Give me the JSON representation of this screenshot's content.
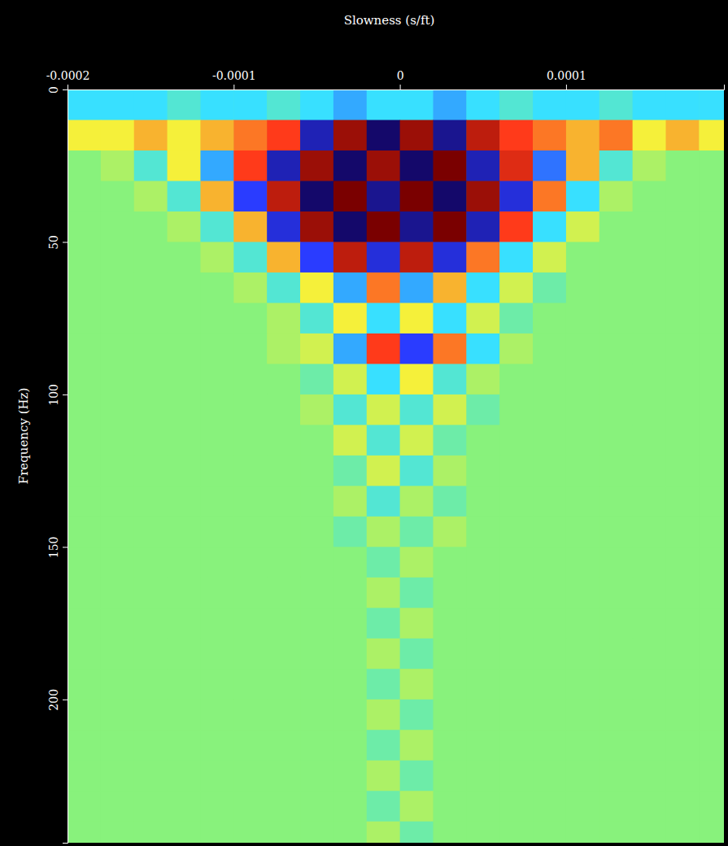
{
  "chart_data": {
    "type": "heatmap",
    "xlabel": "Slowness (s/ft)",
    "ylabel": "Frequency (Hz)",
    "xlim": [
      -0.0002,
      0.000195
    ],
    "ylim": [
      0,
      247
    ],
    "xticks": [
      -0.0002,
      -0.0001,
      0,
      0.0001
    ],
    "yticks": [
      0,
      50,
      100,
      150,
      200
    ],
    "zlim": [
      -1,
      1
    ],
    "x": [
      -0.00019,
      -0.00017,
      -0.00015,
      -0.00013,
      -0.00011,
      -9e-05,
      -7e-05,
      -5e-05,
      -3e-05,
      -1e-05,
      1e-05,
      3e-05,
      5e-05,
      7e-05,
      9e-05,
      0.00011,
      0.00013,
      0.00015,
      0.00017,
      0.00019
    ],
    "y": [
      5,
      15,
      25,
      35,
      45,
      55,
      65,
      75,
      85,
      95,
      105,
      115,
      125,
      135,
      145,
      155,
      165,
      175,
      185,
      195,
      205,
      215,
      225,
      235,
      245
    ],
    "z": [
      [
        -0.3,
        -0.3,
        -0.3,
        -0.2,
        -0.3,
        -0.3,
        -0.2,
        -0.3,
        -0.4,
        -0.3,
        -0.3,
        -0.4,
        -0.3,
        -0.2,
        -0.3,
        -0.3,
        -0.2,
        -0.3,
        -0.3,
        -0.3
      ],
      [
        0.3,
        0.3,
        0.4,
        0.3,
        0.4,
        0.5,
        0.6,
        -0.8,
        0.9,
        -1.0,
        0.9,
        -0.9,
        0.8,
        0.6,
        0.5,
        0.4,
        0.5,
        0.3,
        0.4,
        0.3
      ],
      [
        0,
        0.1,
        -0.2,
        0.3,
        -0.4,
        0.6,
        -0.8,
        0.9,
        -1.0,
        0.9,
        -1.0,
        1.0,
        -0.8,
        0.7,
        -0.5,
        0.4,
        -0.2,
        0.1,
        0,
        0
      ],
      [
        0,
        0,
        0.1,
        -0.2,
        0.4,
        -0.6,
        0.8,
        -1.0,
        1.0,
        -0.9,
        1.0,
        -1.0,
        0.9,
        -0.7,
        0.5,
        -0.3,
        0.1,
        0,
        0,
        0
      ],
      [
        0,
        0,
        0,
        0.1,
        -0.2,
        0.4,
        -0.7,
        0.9,
        -1.0,
        1.0,
        -0.9,
        1.0,
        -0.8,
        0.6,
        -0.3,
        0.2,
        0,
        0,
        0,
        0
      ],
      [
        0,
        0,
        0,
        0,
        0.1,
        -0.2,
        0.4,
        -0.6,
        0.8,
        -0.7,
        0.8,
        -0.7,
        0.5,
        -0.3,
        0.2,
        0,
        0,
        0,
        0,
        0
      ],
      [
        0,
        0,
        0,
        0,
        0,
        0.1,
        -0.2,
        0.3,
        -0.4,
        0.5,
        -0.4,
        0.4,
        -0.3,
        0.2,
        -0.1,
        0,
        0,
        0,
        0,
        0
      ],
      [
        0,
        0,
        0,
        0,
        0,
        0,
        0.1,
        -0.2,
        0.3,
        -0.3,
        0.3,
        -0.3,
        0.2,
        -0.1,
        0,
        0,
        0,
        0,
        0,
        0
      ],
      [
        0,
        0,
        0,
        0,
        0,
        0,
        0.1,
        0.2,
        -0.4,
        0.6,
        -0.6,
        0.5,
        -0.3,
        0.1,
        0,
        0,
        0,
        0,
        0,
        0
      ],
      [
        0,
        0,
        0,
        0,
        0,
        0,
        0,
        -0.1,
        0.2,
        -0.3,
        0.3,
        -0.2,
        0.1,
        0,
        0,
        0,
        0,
        0,
        0,
        0
      ],
      [
        0,
        0,
        0,
        0,
        0,
        0,
        0,
        0.1,
        -0.2,
        0.2,
        -0.2,
        0.2,
        -0.1,
        0,
        0,
        0,
        0,
        0,
        0,
        0
      ],
      [
        0,
        0,
        0,
        0,
        0,
        0,
        0,
        0,
        0.2,
        -0.2,
        0.2,
        -0.1,
        0,
        0,
        0,
        0,
        0,
        0,
        0,
        0
      ],
      [
        0,
        0,
        0,
        0,
        0,
        0,
        0,
        0,
        -0.1,
        0.2,
        -0.2,
        0.1,
        0,
        0,
        0,
        0,
        0,
        0,
        0,
        0
      ],
      [
        0,
        0,
        0,
        0,
        0,
        0,
        0,
        0,
        0.1,
        -0.2,
        0.1,
        -0.1,
        0,
        0,
        0,
        0,
        0,
        0,
        0,
        0
      ],
      [
        0,
        0,
        0,
        0,
        0,
        0,
        0,
        0,
        -0.1,
        0.1,
        -0.1,
        0.1,
        0,
        0,
        0,
        0,
        0,
        0,
        0,
        0
      ],
      [
        0,
        0,
        0,
        0,
        0,
        0,
        0,
        0,
        0,
        -0.1,
        0.1,
        0,
        0,
        0,
        0,
        0,
        0,
        0,
        0,
        0
      ],
      [
        0,
        0,
        0,
        0,
        0,
        0,
        0,
        0,
        0,
        0.1,
        -0.1,
        0,
        0,
        0,
        0,
        0,
        0,
        0,
        0,
        0
      ],
      [
        0,
        0,
        0,
        0,
        0,
        0,
        0,
        0,
        0,
        -0.1,
        0.1,
        0,
        0,
        0,
        0,
        0,
        0,
        0,
        0,
        0
      ],
      [
        0,
        0,
        0,
        0,
        0,
        0,
        0,
        0,
        0,
        0.1,
        -0.1,
        0,
        0,
        0,
        0,
        0,
        0,
        0,
        0,
        0
      ],
      [
        0,
        0,
        0,
        0,
        0,
        0,
        0,
        0,
        0,
        -0.1,
        0.1,
        0,
        0,
        0,
        0,
        0,
        0,
        0,
        0,
        0
      ],
      [
        0,
        0,
        0,
        0,
        0,
        0,
        0,
        0,
        0,
        0.1,
        -0.1,
        0,
        0,
        0,
        0,
        0,
        0,
        0,
        0,
        0
      ],
      [
        0,
        0,
        0,
        0,
        0,
        0,
        0,
        0,
        0,
        -0.1,
        0.1,
        0,
        0,
        0,
        0,
        0,
        0,
        0,
        0,
        0
      ],
      [
        0,
        0,
        0,
        0,
        0,
        0,
        0,
        0,
        0,
        0.1,
        -0.1,
        0,
        0,
        0,
        0,
        0,
        0,
        0,
        0,
        0
      ],
      [
        0,
        0,
        0,
        0,
        0,
        0,
        0,
        0,
        0,
        -0.1,
        0.1,
        0,
        0,
        0,
        0,
        0,
        0,
        0,
        0,
        0
      ],
      [
        0,
        0,
        0,
        0,
        0,
        0,
        0,
        0,
        0,
        0.1,
        -0.1,
        0,
        0,
        0,
        0,
        0,
        0,
        0,
        0,
        0
      ]
    ]
  }
}
